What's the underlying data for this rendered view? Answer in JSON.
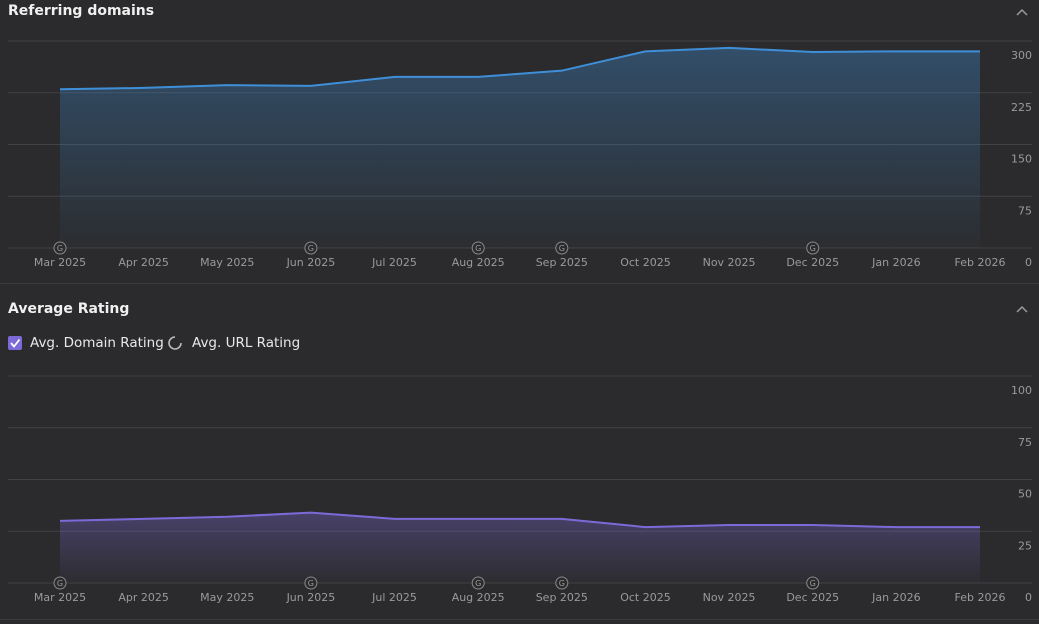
{
  "chart_data": [
    {
      "type": "area",
      "title": "Referring domains",
      "categories": [
        "Mar 2025",
        "Apr 2025",
        "May 2025",
        "Jun 2025",
        "Jul 2025",
        "Aug 2025",
        "Sep 2025",
        "Oct 2025",
        "Nov 2025",
        "Dec 2025",
        "Jan 2026",
        "Feb 2026"
      ],
      "series": [
        {
          "name": "Referring domains",
          "color": "#3f8fd8",
          "values": [
            230,
            232,
            236,
            235,
            248,
            248,
            257,
            285,
            290,
            284,
            285,
            285
          ]
        }
      ],
      "ylim": [
        0,
        300
      ],
      "yticks": [
        0,
        75,
        150,
        225,
        300
      ],
      "grid": true,
      "annotations": [
        {
          "category": 0,
          "label": "G"
        },
        {
          "category": 3,
          "label": "G"
        },
        {
          "category": 5,
          "label": "G"
        },
        {
          "category": 6,
          "label": "G"
        },
        {
          "category": 9,
          "label": "G"
        }
      ]
    },
    {
      "type": "area",
      "title": "Average Rating",
      "categories": [
        "Mar 2025",
        "Apr 2025",
        "May 2025",
        "Jun 2025",
        "Jul 2025",
        "Aug 2025",
        "Sep 2025",
        "Oct 2025",
        "Nov 2025",
        "Dec 2025",
        "Jan 2026",
        "Feb 2026"
      ],
      "series": [
        {
          "name": "Avg. Domain Rating",
          "color": "#7d6ad8",
          "values": [
            30,
            31,
            32,
            34,
            31,
            31,
            31,
            27,
            28,
            28,
            27,
            27
          ]
        }
      ],
      "toggles": [
        {
          "name": "Avg. URL Rating",
          "state": "loading"
        }
      ],
      "ylim": [
        0,
        100
      ],
      "yticks": [
        0,
        25,
        50,
        75,
        100
      ],
      "grid": true,
      "annotations": [
        {
          "category": 0,
          "label": "G"
        },
        {
          "category": 3,
          "label": "G"
        },
        {
          "category": 5,
          "label": "G"
        },
        {
          "category": 6,
          "label": "G"
        },
        {
          "category": 9,
          "label": "G"
        }
      ]
    }
  ]
}
